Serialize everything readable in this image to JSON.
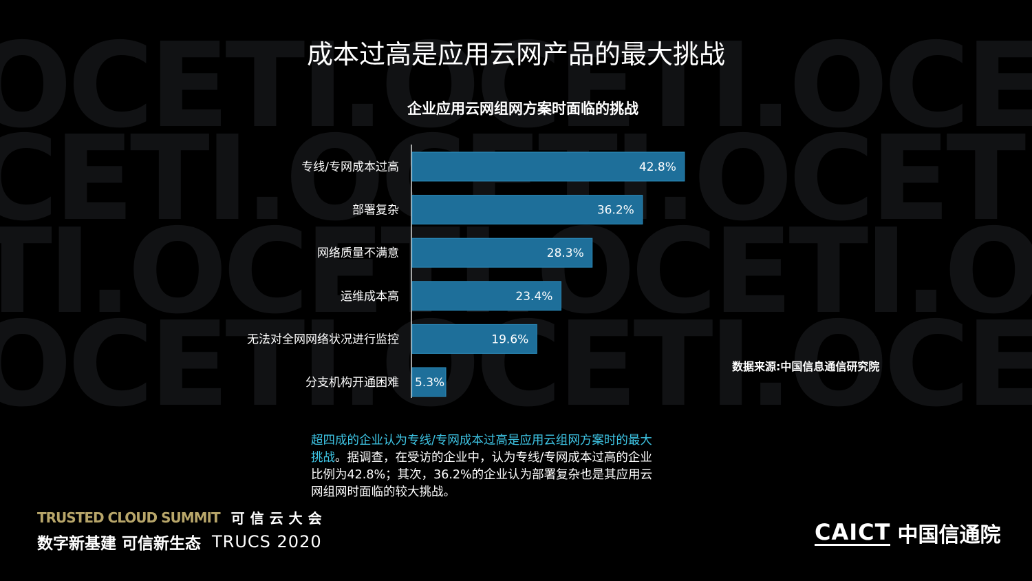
{
  "slide_title": "成本过高是应用云网产品的最大挑战",
  "source_note": "数据来源:中国信息通信研究院",
  "insight": {
    "highlight": "超四成的企业认为专线/专网成本过高是应用云组网方案时的最大挑战",
    "body": "。据调查，在受访的企业中，认为专线/专网成本过高的企业比例为42.8%；其次，36.2%的企业认为部署复杂也是其应用云网组网时面临的较大挑战。"
  },
  "footer": {
    "summit_en": "TRUSTED CLOUD SUMMIT",
    "summit_cn": "可信云大会",
    "slogan": "数字新基建 可信新生态",
    "event": "TRUCS 2020",
    "logo_en": "CAICT",
    "logo_cn": "中国信通院"
  },
  "colors": {
    "background": "#000000",
    "bar": "#1e6f9a",
    "bar_border": "#2b8bbb",
    "highlight_text": "#3ec6e6"
  },
  "chart_data": {
    "type": "bar",
    "orientation": "horizontal",
    "title": "企业应用云网组网方案时面临的挑战",
    "categories": [
      "专线/专网成本过高",
      "部署复杂",
      "网络质量不满意",
      "运维成本高",
      "无法对全网网络状况进行监控",
      "分支机构开通困难"
    ],
    "values": [
      42.8,
      36.2,
      28.3,
      23.4,
      19.6,
      5.3
    ],
    "data_labels": [
      "42.8%",
      "36.2%",
      "28.3%",
      "23.4%",
      "19.6%",
      "5.3%"
    ],
    "unit": "%",
    "xlim": [
      0,
      50
    ],
    "grid": false,
    "legend": "none"
  }
}
